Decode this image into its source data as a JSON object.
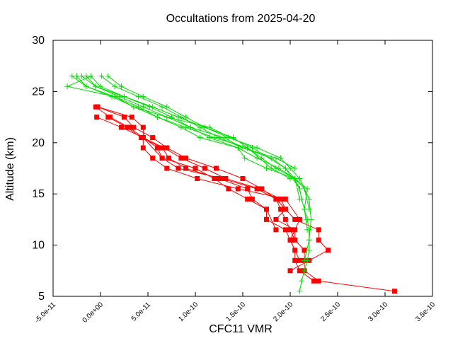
{
  "chart_data": {
    "type": "line",
    "title": "Occultations from 2025-04-20",
    "xlabel": "CFC11 VMR",
    "ylabel": "Altitude (km)",
    "xlim": [
      -5e-11,
      3.5e-10
    ],
    "ylim": [
      5,
      30
    ],
    "xticks": [
      -5e-11,
      0,
      5e-11,
      1e-10,
      1.5e-10,
      2e-10,
      2.5e-10,
      3e-10,
      3.5e-10
    ],
    "xtick_labels": [
      "-5.0e-11",
      "0.0e+00",
      "5.0e-11",
      "1.0e-10",
      "1.5e-10",
      "2.0e-10",
      "2.5e-10",
      "3.0e-10",
      "3.5e-10"
    ],
    "yticks": [
      5,
      10,
      15,
      20,
      25,
      30
    ],
    "ytick_labels": [
      "5",
      "10",
      "15",
      "20",
      "25",
      "30"
    ],
    "grid": false,
    "legend": "none",
    "colors": {
      "red_series": "#ff0000",
      "green_series": "#00dd00"
    },
    "series": [
      {
        "color": "red",
        "marker": "square",
        "points": [
          [
            3.1e-10,
            5.5
          ],
          [
            2.3e-10,
            6.5
          ],
          [
            2.15e-10,
            7.5
          ],
          [
            2.15e-10,
            8.5
          ],
          [
            2.15e-10,
            9.5
          ],
          [
            2.05e-10,
            10.5
          ],
          [
            2e-10,
            11.5
          ],
          [
            1.95e-10,
            12.5
          ],
          [
            1.9e-10,
            13.5
          ],
          [
            1.85e-10,
            14.5
          ],
          [
            1.7e-10,
            15.5
          ],
          [
            1.5e-10,
            16.5
          ],
          [
            1.22e-10,
            17.5
          ],
          [
            9e-11,
            18.5
          ],
          [
            7e-11,
            19.5
          ],
          [
            5.5e-11,
            20.5
          ],
          [
            3.5e-11,
            21.5
          ],
          [
            2.5e-11,
            22.5
          ],
          [
            -3e-12,
            23.5
          ]
        ]
      },
      {
        "color": "red",
        "marker": "square",
        "points": [
          [
            2e-10,
            7.5
          ],
          [
            2.2e-10,
            8.5
          ],
          [
            2.4e-10,
            9.5
          ],
          [
            2.3e-10,
            10.5
          ],
          [
            2.3e-10,
            11.5
          ],
          [
            2.05e-10,
            12.5
          ],
          [
            1.95e-10,
            13.5
          ],
          [
            1.9e-10,
            14.5
          ],
          [
            1.68e-10,
            15.5
          ],
          [
            1.32e-10,
            16.5
          ],
          [
            1.1e-10,
            17.5
          ],
          [
            8.5e-11,
            18.5
          ],
          [
            6.7e-11,
            19.5
          ],
          [
            4.5e-11,
            20.5
          ],
          [
            3e-11,
            21.5
          ],
          [
            1e-11,
            22.5
          ],
          [
            -5e-12,
            23.5
          ]
        ]
      },
      {
        "color": "red",
        "marker": "square",
        "points": [
          [
            2.25e-10,
            6.5
          ],
          [
            2.1e-10,
            7.5
          ],
          [
            2.05e-10,
            8.5
          ],
          [
            2.05e-10,
            9.5
          ],
          [
            2e-10,
            10.5
          ],
          [
            1.95e-10,
            11.5
          ],
          [
            1.75e-10,
            12.5
          ],
          [
            1.75e-10,
            13.5
          ],
          [
            1.6e-10,
            14.5
          ],
          [
            1.55e-10,
            15.5
          ],
          [
            1.25e-10,
            16.5
          ],
          [
            9e-11,
            17.5
          ],
          [
            7.2e-11,
            18.5
          ],
          [
            6.5e-11,
            19.5
          ],
          [
            4.3e-11,
            20.5
          ],
          [
            2.8e-11,
            21.5
          ],
          [
            8e-12,
            22.5
          ]
        ]
      },
      {
        "color": "red",
        "marker": "square",
        "points": [
          [
            2.15e-10,
            9.5
          ],
          [
            2.05e-10,
            10.5
          ],
          [
            2.05e-10,
            11.5
          ],
          [
            1.85e-10,
            12.5
          ],
          [
            1.95e-10,
            13.5
          ],
          [
            1.85e-10,
            14.5
          ],
          [
            1.65e-10,
            15.5
          ],
          [
            1.28e-10,
            16.5
          ],
          [
            8.2e-11,
            17.5
          ],
          [
            6.5e-11,
            18.5
          ],
          [
            6e-11,
            19.5
          ],
          [
            4.5e-11,
            20.5
          ],
          [
            2.2e-11,
            21.5
          ],
          [
            -4e-12,
            22.5
          ]
        ]
      },
      {
        "color": "red",
        "marker": "square",
        "points": [
          [
            2.1e-10,
            8.5
          ],
          [
            2e-10,
            10.5
          ],
          [
            2.1e-10,
            12.5
          ],
          [
            1.95e-10,
            14.5
          ],
          [
            1.45e-10,
            15.5
          ],
          [
            1.02e-10,
            16.5
          ],
          [
            7e-11,
            17.5
          ],
          [
            5.5e-11,
            18.5
          ],
          [
            4.5e-11,
            19.5
          ],
          [
            4.5e-11,
            21.5
          ],
          [
            3.3e-11,
            22.5
          ],
          [
            -3e-12,
            23.5
          ]
        ]
      },
      {
        "color": "red",
        "marker": "square",
        "points": [
          [
            1.85e-10,
            11.5
          ],
          [
            1.75e-10,
            13.5
          ],
          [
            1.55e-10,
            14.5
          ],
          [
            1.35e-10,
            15.5
          ],
          [
            1.2e-10,
            16.5
          ],
          [
            1e-10,
            17.5
          ],
          [
            6.5e-11,
            18.5
          ],
          [
            4.5e-11,
            20.5
          ]
        ]
      },
      {
        "color": "green",
        "marker": "plus",
        "points": [
          [
            2.1e-10,
            5.5
          ],
          [
            2.12e-10,
            6.5
          ],
          [
            2.15e-10,
            7.5
          ],
          [
            2.18e-10,
            8.5
          ],
          [
            2.2e-10,
            9.5
          ],
          [
            2.2e-10,
            10.5
          ],
          [
            2.2e-10,
            11.5
          ],
          [
            2.18e-10,
            12.5
          ],
          [
            2.15e-10,
            13.5
          ],
          [
            2.12e-10,
            14.5
          ],
          [
            2.1e-10,
            15.5
          ],
          [
            2.05e-10,
            16.5
          ],
          [
            1.95e-10,
            17.5
          ],
          [
            1.8e-10,
            18.5
          ],
          [
            1.5e-10,
            19.5
          ],
          [
            1.25e-10,
            20.5
          ],
          [
            1.05e-10,
            21.5
          ],
          [
            8.5e-11,
            22.5
          ],
          [
            6.5e-11,
            23.5
          ],
          [
            4e-11,
            24.5
          ],
          [
            1.5e-11,
            25.5
          ],
          [
            1e-12,
            26.5
          ]
        ]
      },
      {
        "color": "green",
        "marker": "plus",
        "points": [
          [
            2.15e-10,
            8.5
          ],
          [
            2.2e-10,
            10.5
          ],
          [
            2.22e-10,
            12.5
          ],
          [
            2.2e-10,
            14.5
          ],
          [
            2.15e-10,
            15.5
          ],
          [
            2.1e-10,
            16.5
          ],
          [
            2e-10,
            17.5
          ],
          [
            1.9e-10,
            18.5
          ],
          [
            1.65e-10,
            19.5
          ],
          [
            1.35e-10,
            20.5
          ],
          [
            1.1e-10,
            21.5
          ],
          [
            9e-11,
            22.5
          ],
          [
            7e-11,
            23.5
          ],
          [
            4.5e-11,
            24.5
          ],
          [
            2.2e-11,
            25.5
          ],
          [
            8e-12,
            26.5
          ]
        ]
      },
      {
        "color": "green",
        "marker": "plus",
        "points": [
          [
            2.18e-10,
            11.5
          ],
          [
            2.15e-10,
            13.5
          ],
          [
            2.18e-10,
            15.5
          ],
          [
            2.05e-10,
            16.5
          ],
          [
            1.88e-10,
            17.5
          ],
          [
            1.65e-10,
            18.5
          ],
          [
            1.45e-10,
            19.5
          ],
          [
            1.15e-10,
            20.5
          ],
          [
            9.5e-11,
            21.5
          ],
          [
            7.5e-11,
            22.5
          ],
          [
            5.2e-11,
            23.5
          ],
          [
            2.5e-11,
            24.5
          ],
          [
            -5e-12,
            25.5
          ],
          [
            -1.5e-11,
            26.5
          ]
        ]
      },
      {
        "color": "green",
        "marker": "plus",
        "points": [
          [
            2.1e-10,
            14.5
          ],
          [
            2.05e-10,
            16.5
          ],
          [
            1.75e-10,
            17.5
          ],
          [
            1.52e-10,
            18.5
          ],
          [
            1.45e-10,
            19.5
          ],
          [
            1.05e-10,
            20.5
          ],
          [
            8.5e-11,
            21.5
          ],
          [
            6e-11,
            22.5
          ],
          [
            4e-11,
            23.5
          ],
          [
            1.5e-11,
            24.5
          ],
          [
            -1.5e-11,
            25.5
          ],
          [
            -2.5e-11,
            26.5
          ]
        ]
      },
      {
        "color": "green",
        "marker": "plus",
        "points": [
          [
            2.2e-10,
            13.5
          ],
          [
            2.15e-10,
            15.5
          ],
          [
            2.05e-10,
            16.5
          ],
          [
            1.85e-10,
            17.5
          ],
          [
            1.7e-10,
            18.5
          ],
          [
            1.55e-10,
            19.5
          ],
          [
            1.4e-10,
            20.5
          ],
          [
            1.1e-10,
            21.5
          ],
          [
            8.2e-11,
            22.5
          ],
          [
            5.5e-11,
            23.5
          ],
          [
            2.5e-11,
            24.5
          ],
          [
            0,
            25.5
          ],
          [
            -1e-11,
            26.5
          ]
        ]
      },
      {
        "color": "green",
        "marker": "plus",
        "points": [
          [
            2e-10,
            16.5
          ],
          [
            1.8e-10,
            17.5
          ],
          [
            1.55e-10,
            19.5
          ],
          [
            1.2e-10,
            20.5
          ],
          [
            9e-11,
            21.5
          ],
          [
            6e-11,
            22.5
          ],
          [
            3.5e-11,
            23.5
          ],
          [
            1.2e-11,
            24.5
          ],
          [
            -1.5e-11,
            25.5
          ],
          [
            -3e-11,
            26.5
          ]
        ]
      },
      {
        "color": "green",
        "marker": "plus",
        "points": [
          [
            2.05e-10,
            17.5
          ],
          [
            1.85e-10,
            18.5
          ],
          [
            1.5e-10,
            19.5
          ],
          [
            1.3e-10,
            20.5
          ],
          [
            9.5e-11,
            21.5
          ],
          [
            7e-11,
            22.5
          ],
          [
            4.5e-11,
            23.5
          ],
          [
            2e-11,
            24.5
          ],
          [
            -5e-12,
            25.5
          ],
          [
            -2e-11,
            26.5
          ]
        ]
      },
      {
        "color": "green",
        "marker": "plus",
        "points": [
          [
            2.1e-10,
            15.5
          ],
          [
            1.95e-10,
            17.5
          ],
          [
            1.6e-10,
            19.5
          ],
          [
            1.15e-10,
            21.5
          ],
          [
            7e-11,
            22.5
          ],
          [
            3.5e-11,
            23.5
          ],
          [
            1.5e-11,
            24.5
          ],
          [
            -3.5e-11,
            25.5
          ],
          [
            -1e-11,
            26.5
          ]
        ]
      }
    ]
  }
}
